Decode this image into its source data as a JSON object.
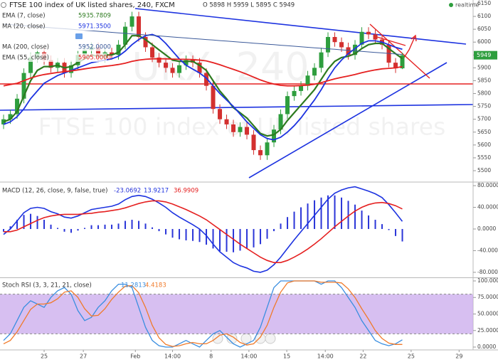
{
  "chart_data": [
    {
      "type": "candlestick",
      "title": "FTSE 100 index of UK listed shares, 240, FXCM",
      "ohlc_text": "O 5898 H 5959 L 5895 C 5949",
      "realtime": "realtime",
      "watermark": [
        "UKX, 240",
        "FTSE 100 index of UK listed shares"
      ],
      "up_color": "#2e9e3e",
      "down_color": "#d3302f",
      "ylim": [
        5458.5,
        6163.8
      ],
      "yticks": [
        5500,
        5550,
        5600,
        5650,
        5700,
        5750,
        5800,
        5850,
        5900,
        5950,
        6000,
        6050,
        6100,
        6150
      ],
      "open": [
        5680,
        5700,
        5720,
        5780,
        5880,
        5940,
        5960,
        5930,
        5900,
        5920,
        5880,
        5910,
        5950,
        5970,
        5980,
        5940,
        5960,
        5950,
        5990,
        6060,
        6100,
        6020,
        5980,
        5940,
        5920,
        5900,
        5880,
        5910,
        5930,
        5920,
        5880,
        5830,
        5740,
        5700,
        5680,
        5650,
        5670,
        5640,
        5580,
        5560,
        5610,
        5660,
        5720,
        5790,
        5810,
        5830,
        5870,
        5900,
        5960,
        6020,
        6000,
        5980,
        5950,
        5990,
        6040,
        6030,
        6010,
        5990,
        5920,
        5898
      ],
      "high": [
        5718,
        5738,
        5798,
        5898,
        5958,
        5978,
        5978,
        5948,
        5938,
        5938,
        5928,
        5968,
        5988,
        5998,
        5998,
        5978,
        5978,
        6008,
        6078,
        6118,
        6118,
        6038,
        5998,
        5958,
        5938,
        5918,
        5928,
        5948,
        5948,
        5938,
        5898,
        5848,
        5758,
        5718,
        5698,
        5688,
        5688,
        5658,
        5598,
        5628,
        5678,
        5738,
        5808,
        5828,
        5848,
        5888,
        5918,
        5978,
        6038,
        6038,
        6018,
        5998,
        6008,
        6058,
        6058,
        6048,
        6028,
        6008,
        5938,
        5959
      ],
      "low": [
        5662,
        5682,
        5702,
        5762,
        5862,
        5922,
        5912,
        5882,
        5882,
        5862,
        5862,
        5892,
        5932,
        5952,
        5922,
        5922,
        5932,
        5932,
        5972,
        6042,
        6002,
        5962,
        5922,
        5902,
        5882,
        5862,
        5862,
        5892,
        5902,
        5862,
        5812,
        5722,
        5682,
        5662,
        5632,
        5632,
        5622,
        5562,
        5542,
        5542,
        5592,
        5642,
        5702,
        5772,
        5792,
        5812,
        5852,
        5882,
        5942,
        5982,
        5962,
        5932,
        5932,
        5972,
        6012,
        5992,
        5972,
        5902,
        5880,
        5895
      ],
      "close": [
        5700,
        5720,
        5780,
        5880,
        5940,
        5960,
        5930,
        5900,
        5920,
        5880,
        5910,
        5950,
        5970,
        5980,
        5940,
        5960,
        5950,
        5990,
        6060,
        6100,
        6020,
        5980,
        5940,
        5920,
        5900,
        5880,
        5910,
        5930,
        5920,
        5880,
        5830,
        5740,
        5700,
        5680,
        5650,
        5670,
        5640,
        5580,
        5560,
        5610,
        5660,
        5720,
        5790,
        5810,
        5830,
        5870,
        5900,
        5960,
        6020,
        6000,
        5980,
        5950,
        5990,
        6040,
        6030,
        6010,
        5990,
        5920,
        5898,
        5949
      ],
      "lines": [
        {
          "name": "EMA (7, close)",
          "legend_value": "5935.7809",
          "color": "#2d7a1f",
          "width": 2.2,
          "values": [
            5690,
            5700,
            5730,
            5790,
            5850,
            5890,
            5905,
            5905,
            5910,
            5900,
            5905,
            5920,
            5935,
            5950,
            5945,
            5950,
            5950,
            5960,
            5990,
            6025,
            6025,
            6010,
            5990,
            5970,
            5950,
            5930,
            5925,
            5925,
            5925,
            5910,
            5890,
            5850,
            5810,
            5780,
            5745,
            5725,
            5705,
            5675,
            5645,
            5635,
            5640,
            5660,
            5695,
            5725,
            5755,
            5785,
            5815,
            5855,
            5895,
            5925,
            5940,
            5945,
            5955,
            5975,
            5990,
            5995,
            5995,
            5975,
            5955,
            5936
          ]
        },
        {
          "name": "MA (20, close)",
          "legend_value": "5971.3500",
          "color": "#1d33e0",
          "width": 1.8,
          "values": [
            5680,
            5690,
            5710,
            5740,
            5780,
            5810,
            5840,
            5855,
            5870,
            5880,
            5890,
            5900,
            5910,
            5920,
            5925,
            5930,
            5935,
            5945,
            5965,
            5990,
            6010,
            6025,
            6030,
            6020,
            5995,
            5965,
            5935,
            5910,
            5895,
            5880,
            5860,
            5830,
            5800,
            5775,
            5750,
            5720,
            5690,
            5665,
            5640,
            5625,
            5620,
            5630,
            5650,
            5675,
            5705,
            5740,
            5775,
            5815,
            5860,
            5900,
            5930,
            5955,
            5975,
            5995,
            6005,
            6005,
            6000,
            5990,
            5980,
            5972
          ]
        },
        {
          "name": "MA (200, close)",
          "legend_value": "5952.0000",
          "color": "#3c5a9a",
          "width": 1,
          "values": [
            6070,
            6068,
            6066,
            6064,
            6062,
            6060,
            6058,
            6056,
            6054,
            6052,
            6050,
            6048,
            6046,
            6044,
            6042,
            6040,
            6038,
            6036,
            6034,
            6032,
            6030,
            6028,
            6026,
            6024,
            6022,
            6020,
            6018,
            6016,
            6014,
            6012,
            6010,
            6008,
            6006,
            6004,
            6002,
            6000,
            5998,
            5996,
            5994,
            5992,
            5990,
            5988,
            5986,
            5984,
            5982,
            5980,
            5978,
            5976,
            5974,
            5972,
            5970,
            5968,
            5966,
            5964,
            5962,
            5960,
            5958,
            5956,
            5954,
            5952
          ]
        },
        {
          "name": "EMA (55, close)",
          "legend_value": "5905.0000",
          "color": "#e52020",
          "width": 1.8,
          "values": [
            5830,
            5835,
            5840,
            5850,
            5860,
            5868,
            5874,
            5878,
            5882,
            5885,
            5888,
            5892,
            5896,
            5900,
            5903,
            5906,
            5909,
            5913,
            5918,
            5925,
            5930,
            5933,
            5935,
            5935,
            5935,
            5934,
            5933,
            5933,
            5932,
            5930,
            5927,
            5920,
            5912,
            5903,
            5894,
            5885,
            5875,
            5864,
            5853,
            5844,
            5837,
            5832,
            5830,
            5830,
            5831,
            5833,
            5836,
            5842,
            5850,
            5857,
            5863,
            5868,
            5874,
            5881,
            5887,
            5892,
            5896,
            5898,
            5900,
            5905
          ]
        }
      ]
    },
    {
      "type": "macd",
      "title": "MACD (12, 26, close, 9, false, true)",
      "legend_values": [
        -23.0692,
        13.9217,
        36.9909
      ],
      "ylim": [
        -89.3,
        85.3
      ],
      "yticks": [
        {
          "value": 80,
          "label": "80.0000"
        },
        {
          "value": 40,
          "label": "40.0000"
        },
        {
          "value": 0,
          "label": "0.0000"
        },
        {
          "value": -40,
          "label": "-40.0000"
        },
        {
          "value": -80,
          "label": "-80.0000"
        }
      ],
      "histogram": {
        "color": "#2a35d8",
        "values": [
          -5,
          5,
          17,
          26,
          28,
          24,
          17,
          8,
          2,
          -5,
          -7,
          -3,
          2,
          7,
          7,
          8,
          8,
          10,
          15,
          17,
          15,
          10,
          3,
          -4,
          -10,
          -16,
          -19,
          -21,
          -22,
          -24,
          -29,
          -36,
          -41,
          -42,
          -43,
          -40,
          -36,
          -34,
          -28,
          -18,
          -4,
          10,
          22,
          32,
          40,
          47,
          53,
          58,
          62,
          62,
          58,
          52,
          45,
          34,
          25,
          17,
          9,
          -2,
          -13,
          -23
        ]
      },
      "macd": {
        "color": "#1d33e0",
        "values": [
          -10,
          0,
          15,
          30,
          38,
          40,
          38,
          32,
          28,
          22,
          20,
          24,
          30,
          36,
          38,
          40,
          42,
          46,
          54,
          60,
          62,
          60,
          55,
          48,
          40,
          30,
          22,
          15,
          8,
          0,
          -12,
          -28,
          -42,
          -52,
          -62,
          -68,
          -72,
          -78,
          -80,
          -76,
          -66,
          -52,
          -36,
          -20,
          -5,
          10,
          25,
          40,
          55,
          66,
          72,
          76,
          78,
          74,
          70,
          65,
          58,
          45,
          30,
          14
        ]
      },
      "signal": {
        "color": "#e52020",
        "values": [
          -5,
          -5,
          -2,
          4,
          10,
          16,
          21,
          24,
          26,
          27,
          27,
          27,
          28,
          29,
          31,
          32,
          34,
          36,
          39,
          43,
          47,
          50,
          52,
          52,
          50,
          46,
          41,
          36,
          30,
          24,
          17,
          8,
          -1,
          -10,
          -19,
          -28,
          -36,
          -44,
          -52,
          -58,
          -62,
          -62,
          -58,
          -52,
          -45,
          -37,
          -28,
          -18,
          -7,
          4,
          14,
          24,
          33,
          40,
          45,
          48,
          49,
          47,
          43,
          37
        ]
      }
    },
    {
      "type": "stochastic",
      "title": "Stoch RSI (3, 3, 21, 21, close)",
      "legend_values": [
        11.2813,
        4.4183
      ],
      "ylim": [
        -4.3,
        104.3
      ],
      "yticks": [
        {
          "value": 100,
          "label": "100.0000"
        },
        {
          "value": 75,
          "label": "75.0000"
        },
        {
          "value": 50,
          "label": "50.0000"
        },
        {
          "value": 25,
          "label": "25.0000"
        },
        {
          "value": 0,
          "label": "0.0000"
        }
      ],
      "band": [
        20,
        80
      ],
      "band_color": "#c9a9ec",
      "k": {
        "color": "#3a8ee0",
        "values": [
          10,
          20,
          40,
          60,
          70,
          65,
          60,
          75,
          85,
          90,
          80,
          55,
          40,
          45,
          60,
          70,
          85,
          95,
          95,
          90,
          60,
          30,
          10,
          2,
          0,
          0,
          5,
          10,
          5,
          0,
          10,
          20,
          25,
          15,
          5,
          0,
          5,
          10,
          30,
          60,
          90,
          100,
          100,
          100,
          100,
          100,
          100,
          95,
          100,
          100,
          90,
          75,
          60,
          40,
          25,
          10,
          5,
          2,
          5,
          11
        ]
      },
      "d": {
        "color": "#f07a2a",
        "values": [
          5,
          10,
          23,
          40,
          57,
          65,
          65,
          67,
          73,
          83,
          85,
          75,
          58,
          47,
          48,
          58,
          72,
          83,
          92,
          93,
          82,
          60,
          33,
          14,
          4,
          1,
          2,
          5,
          7,
          5,
          5,
          10,
          18,
          20,
          15,
          7,
          3,
          5,
          15,
          33,
          60,
          83,
          97,
          100,
          100,
          100,
          100,
          98,
          98,
          98,
          97,
          88,
          75,
          58,
          42,
          25,
          13,
          6,
          4,
          4
        ]
      },
      "xlim": [
        -0.53,
        69.47
      ],
      "xticks": [
        {
          "value": 6,
          "label": "25"
        },
        {
          "value": 11.8,
          "label": "27"
        },
        {
          "value": 19.5,
          "label": "Feb"
        },
        {
          "value": 25,
          "label": "14:00"
        },
        {
          "value": 30.7,
          "label": "8"
        },
        {
          "value": 36.3,
          "label": "14:00"
        },
        {
          "value": 41.9,
          "label": "15"
        },
        {
          "value": 47.6,
          "label": "14:00"
        },
        {
          "value": 53.2,
          "label": "22"
        },
        {
          "value": 60.3,
          "label": "25"
        },
        {
          "value": 67.4,
          "label": "29"
        }
      ]
    }
  ]
}
